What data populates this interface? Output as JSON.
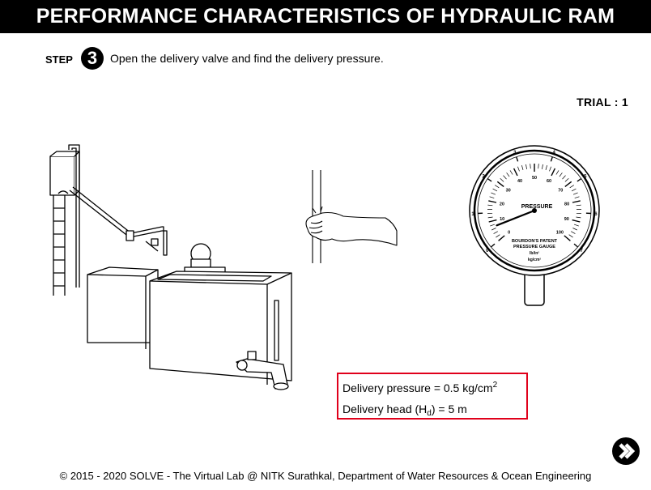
{
  "title": "PERFORMANCE CHARACTERISTICS OF HYDRAULIC RAM",
  "step": {
    "label": "STEP",
    "number": "3",
    "instruction": "Open the delivery valve and find the delivery pressure."
  },
  "trial": "TRIAL : 1",
  "gauge": {
    "title": "PRESSURE",
    "outer_ticks": [
      "0",
      "1",
      "2",
      "3",
      "4",
      "5",
      "6",
      "7"
    ],
    "inner_ticks": [
      "0",
      "10",
      "20",
      "30",
      "40",
      "50",
      "60",
      "70",
      "80",
      "90",
      "100"
    ],
    "maker_line1": "BOURDON'S PATENT",
    "maker_line2": "PRESSURE GAUGE",
    "unit_top": "lb/in²",
    "unit_bottom": "kg/cm²",
    "reading_kg_cm2": 0.5
  },
  "results": {
    "pressure_prefix": "Delivery pressure = 0.5 kg/cm",
    "pressure_sup": "2",
    "head_prefix": "Delivery head (H",
    "head_sub": "d",
    "head_suffix": ") = 5 m"
  },
  "next_icon": "arrow-right-icon",
  "footer": "© 2015 - 2020 SOLVE - The Virtual Lab @ NITK Surathkal, Department of Water Resources & Ocean Engineering"
}
